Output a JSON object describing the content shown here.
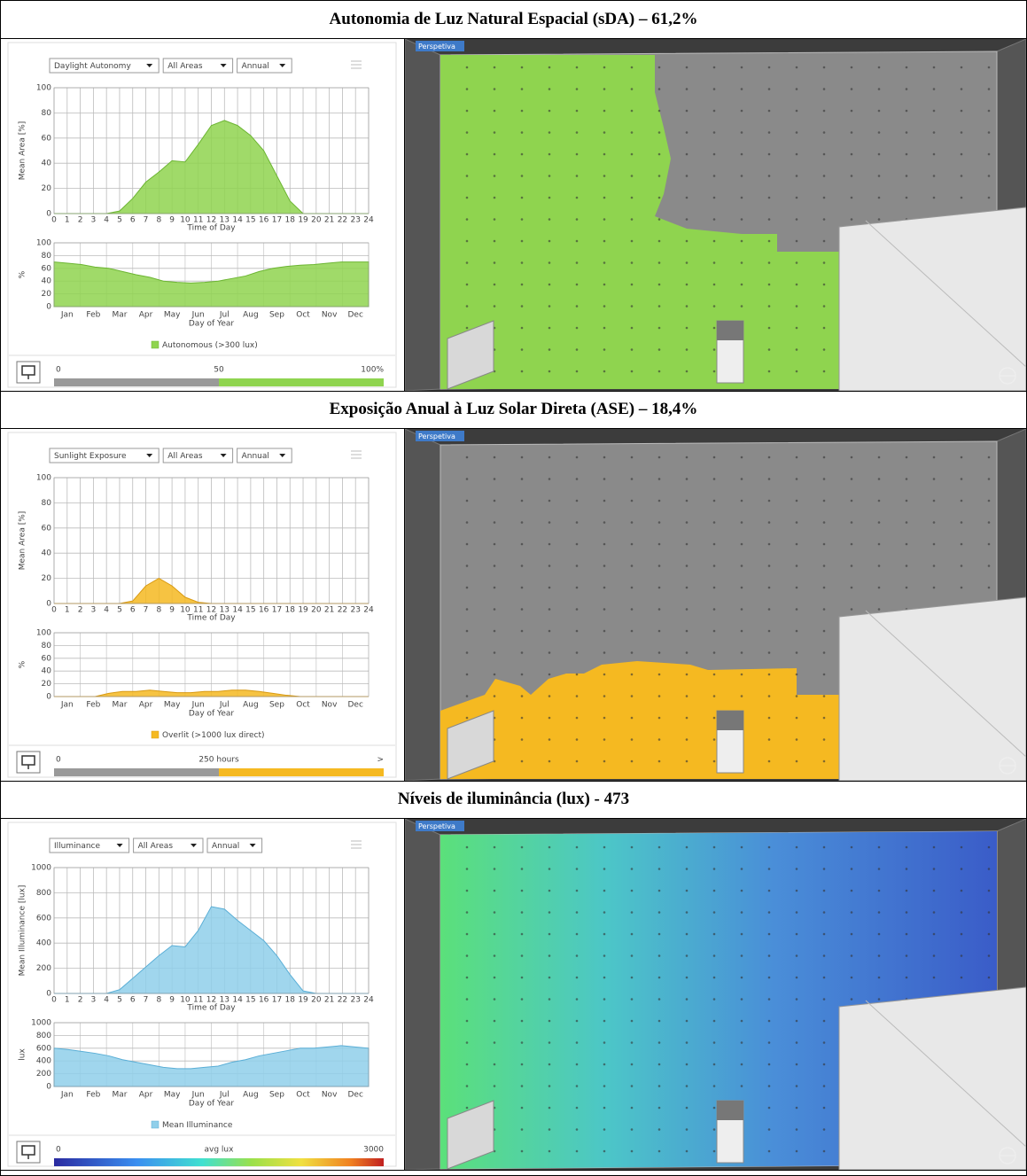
{
  "sections": [
    {
      "title": "Autonomia de Luz Natural Espacial (sDA) – 61,2%",
      "dropdowns": [
        "Daylight Autonomy",
        "All Areas",
        "Annual"
      ],
      "daily": {
        "type": "area",
        "xlabel": "Time of Day",
        "ylabel": "Mean Area [%]",
        "x": [
          0,
          1,
          2,
          3,
          4,
          5,
          6,
          7,
          8,
          9,
          10,
          11,
          12,
          13,
          14,
          15,
          16,
          17,
          18,
          19,
          20,
          21,
          22,
          23,
          24
        ],
        "values": [
          0,
          0,
          0,
          0,
          0,
          2,
          12,
          25,
          33,
          42,
          41,
          55,
          70,
          74,
          70,
          62,
          50,
          30,
          10,
          0,
          0,
          0,
          0,
          0,
          0
        ],
        "xlim": [
          0,
          24
        ],
        "ylim": [
          0,
          100
        ],
        "xticks": [
          0,
          1,
          2,
          3,
          4,
          5,
          6,
          7,
          8,
          9,
          10,
          11,
          12,
          13,
          14,
          15,
          16,
          17,
          18,
          19,
          20,
          21,
          22,
          23,
          24
        ],
        "yticks": [
          0,
          20,
          40,
          60,
          80,
          100
        ],
        "color": "#8fd44f"
      },
      "annual": {
        "type": "area",
        "xlabel": "Day of Year",
        "ylabel": "%",
        "categories": [
          "Jan",
          "Feb",
          "Mar",
          "Apr",
          "May",
          "Jun",
          "Jul",
          "Aug",
          "Sep",
          "Oct",
          "Nov",
          "Dec"
        ],
        "values": [
          70,
          68,
          66,
          62,
          60,
          55,
          50,
          46,
          40,
          38,
          37,
          38,
          40,
          44,
          48,
          55,
          60,
          63,
          65,
          66,
          68,
          70,
          70,
          70
        ],
        "ylim": [
          0,
          100
        ],
        "yticks": [
          0,
          20,
          40,
          60,
          80,
          100
        ],
        "color": "#8fd44f"
      },
      "legend": "Autonomous (>300 lux)",
      "scale": [
        "0",
        "50",
        "100%"
      ],
      "view_label": "Perspetiva"
    },
    {
      "title": "Exposição Anual à Luz Solar Direta (ASE) – 18,4%",
      "dropdowns": [
        "Sunlight Exposure",
        "All Areas",
        "Annual"
      ],
      "daily": {
        "type": "area",
        "xlabel": "Time of Day",
        "ylabel": "Mean Area [%]",
        "x": [
          0,
          1,
          2,
          3,
          4,
          5,
          6,
          7,
          8,
          9,
          10,
          11,
          12,
          13,
          14,
          15,
          16,
          17,
          18,
          19,
          20,
          21,
          22,
          23,
          24
        ],
        "values": [
          0,
          0,
          0,
          0,
          0,
          0,
          2,
          14,
          20,
          14,
          5,
          1,
          0,
          0,
          0,
          0,
          0,
          0,
          0,
          0,
          0,
          0,
          0,
          0,
          0
        ],
        "xlim": [
          0,
          24
        ],
        "ylim": [
          0,
          100
        ],
        "xticks": [
          0,
          1,
          2,
          3,
          4,
          5,
          6,
          7,
          8,
          9,
          10,
          11,
          12,
          13,
          14,
          15,
          16,
          17,
          18,
          19,
          20,
          21,
          22,
          23,
          24
        ],
        "yticks": [
          0,
          20,
          40,
          60,
          80,
          100
        ],
        "color": "#f5b921"
      },
      "annual": {
        "type": "area",
        "xlabel": "Day of Year",
        "ylabel": "%",
        "categories": [
          "Jan",
          "Feb",
          "Mar",
          "Apr",
          "May",
          "Jun",
          "Jul",
          "Aug",
          "Sep",
          "Oct",
          "Nov",
          "Dec"
        ],
        "values": [
          0,
          0,
          0,
          0,
          5,
          8,
          8,
          10,
          8,
          6,
          6,
          8,
          8,
          10,
          10,
          8,
          5,
          2,
          0,
          0,
          0,
          0,
          0,
          0
        ],
        "ylim": [
          0,
          100
        ],
        "yticks": [
          0,
          20,
          40,
          60,
          80,
          100
        ],
        "color": "#f5b921"
      },
      "legend": "Overlit (>1000 lux direct)",
      "scale": [
        "0",
        "250 hours",
        ">"
      ],
      "view_label": "Perspetiva"
    },
    {
      "title": "Níveis de iluminância (lux) - 473",
      "dropdowns": [
        "Illuminance",
        "All Areas",
        "Annual"
      ],
      "daily": {
        "type": "area",
        "xlabel": "Time of Day",
        "ylabel": "Mean Illuminance [lux]",
        "x": [
          0,
          1,
          2,
          3,
          4,
          5,
          6,
          7,
          8,
          9,
          10,
          11,
          12,
          13,
          14,
          15,
          16,
          17,
          18,
          19,
          20,
          21,
          22,
          23,
          24
        ],
        "values": [
          0,
          0,
          0,
          0,
          0,
          30,
          120,
          210,
          300,
          380,
          370,
          500,
          690,
          670,
          580,
          500,
          420,
          300,
          150,
          20,
          0,
          0,
          0,
          0,
          0
        ],
        "xlim": [
          0,
          24
        ],
        "ylim": [
          0,
          1000
        ],
        "xticks": [
          0,
          1,
          2,
          3,
          4,
          5,
          6,
          7,
          8,
          9,
          10,
          11,
          12,
          13,
          14,
          15,
          16,
          17,
          18,
          19,
          20,
          21,
          22,
          23,
          24
        ],
        "yticks": [
          0,
          200,
          400,
          600,
          800,
          1000
        ],
        "color": "#8fcfea"
      },
      "annual": {
        "type": "area",
        "xlabel": "Day of Year",
        "ylabel": "lux",
        "categories": [
          "Jan",
          "Feb",
          "Mar",
          "Apr",
          "May",
          "Jun",
          "Jul",
          "Aug",
          "Sep",
          "Oct",
          "Nov",
          "Dec"
        ],
        "values": [
          600,
          580,
          550,
          520,
          480,
          420,
          380,
          340,
          300,
          280,
          280,
          300,
          320,
          380,
          420,
          480,
          520,
          560,
          600,
          600,
          620,
          640,
          620,
          600
        ],
        "ylim": [
          0,
          1000
        ],
        "yticks": [
          0,
          200,
          400,
          600,
          800,
          1000
        ],
        "color": "#8fcfea"
      },
      "legend": "Mean Illuminance",
      "scale": [
        "0",
        "avg lux",
        "3000"
      ],
      "view_label": "Perspetiva"
    }
  ]
}
